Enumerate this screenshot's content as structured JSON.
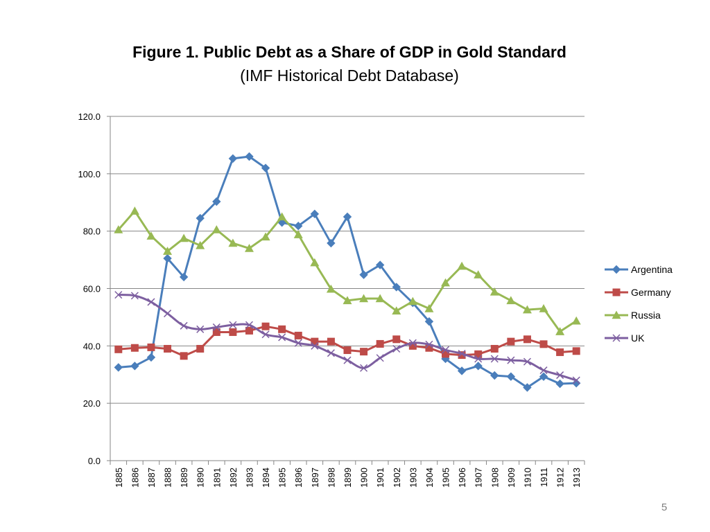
{
  "slide": {
    "title": "Figure 1. Public Debt as a Share of GDP in Gold Standard",
    "subtitle": "(IMF Historical Debt Database)",
    "page_number": "5"
  },
  "chart_data": {
    "type": "line",
    "title": "Figure 1. Public Debt as a Share of GDP in Gold Standard",
    "subtitle": "(IMF Historical Debt Database)",
    "xlabel": "",
    "ylabel": "",
    "ylim": [
      0,
      120
    ],
    "yticks": [
      "0.0",
      "20.0",
      "40.0",
      "60.0",
      "80.0",
      "100.0",
      "120.0"
    ],
    "grid": true,
    "legend": "right",
    "categories": [
      "1885",
      "1886",
      "1887",
      "1888",
      "1889",
      "1890",
      "1891",
      "1892",
      "1893",
      "1894",
      "1895",
      "1896",
      "1897",
      "1898",
      "1899",
      "1900",
      "1901",
      "1902",
      "1903",
      "1904",
      "1905",
      "1906",
      "1907",
      "1908",
      "1909",
      "1910",
      "1911",
      "1912",
      "1913"
    ],
    "series": [
      {
        "name": "Argentina",
        "color": "#4a7ebb",
        "marker": "diamond",
        "values": [
          32.5,
          33,
          36,
          70.5,
          64,
          84.5,
          90.3,
          105.3,
          106,
          102,
          83,
          81.8,
          86,
          75.8,
          85,
          64.8,
          68.2,
          60.5,
          55,
          48.5,
          35.5,
          31.3,
          33,
          29.7,
          29.3,
          25.5,
          29.3,
          26.8,
          27
        ]
      },
      {
        "name": "Germany",
        "color": "#be4b48",
        "marker": "square",
        "values": [
          38.8,
          39.3,
          39.5,
          39,
          36.5,
          39,
          44.8,
          44.8,
          45.3,
          46.8,
          45.8,
          43.6,
          41.5,
          41.5,
          38.5,
          38,
          40.7,
          42.3,
          40,
          39.3,
          37.2,
          36.8,
          37.1,
          39,
          41.5,
          42.3,
          40.6,
          37.8,
          38.2
        ]
      },
      {
        "name": "Russia",
        "color": "#98b954",
        "marker": "triangle",
        "values": [
          80.5,
          87,
          78.3,
          73,
          77.5,
          75,
          80.5,
          75.8,
          74,
          78,
          85,
          78.8,
          69,
          59.8,
          55.8,
          56.5,
          56.5,
          52.2,
          55.5,
          53,
          62,
          67.8,
          64.8,
          58.8,
          55.8,
          52.6,
          53,
          45,
          48.7
        ]
      },
      {
        "name": "UK",
        "color": "#7d5fa0",
        "marker": "x",
        "values": [
          57.8,
          57.5,
          55.3,
          51.3,
          47,
          45.8,
          46.5,
          47.3,
          47.3,
          44,
          43,
          41,
          40,
          37.5,
          35,
          32.3,
          35.8,
          39,
          41,
          40.5,
          38.6,
          37.3,
          35.5,
          35.5,
          35,
          34.5,
          31.5,
          29.8,
          28
        ]
      }
    ]
  }
}
